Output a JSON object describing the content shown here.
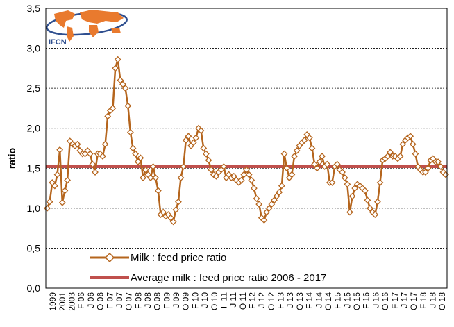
{
  "chart_data": {
    "type": "line",
    "ylabel": "ratio",
    "ylim": [
      0,
      3.5
    ],
    "yticks": [
      "0,0",
      "0,5",
      "1,0",
      "1,5",
      "2,0",
      "2,5",
      "3,0",
      "3,5"
    ],
    "grid": "horizontal dashed",
    "legend_position": "bottom-left inside plot",
    "logo_text": "IFCN",
    "x_tick_labels": [
      "1999",
      "2001",
      "2003",
      "F 06",
      "J 06",
      "O 06",
      "F 07",
      "J 07",
      "O 07",
      "F 08",
      "J 08",
      "O 08",
      "F 09",
      "J 09",
      "O 09",
      "F 10",
      "J 10",
      "O 10",
      "F 11",
      "J 11",
      "O 11",
      "F 12",
      "J 12",
      "O 12",
      "F 13",
      "J 13",
      "O 13",
      "F 14",
      "J 14",
      "O 14",
      "F 15",
      "J 15",
      "O 15",
      "F 16",
      "J 16",
      "O 16",
      "F 17",
      "J 17",
      "O 17",
      "F 18",
      "J 18",
      "O 18"
    ],
    "series": [
      {
        "name": "Milk : feed price ratio",
        "color": "#b5651d",
        "marker": "diamond",
        "values": [
          1.0,
          1.08,
          1.32,
          1.28,
          1.42,
          1.73,
          1.07,
          1.22,
          1.35,
          1.84,
          1.8,
          1.78,
          1.8,
          1.72,
          1.68,
          1.68,
          1.72,
          1.68,
          1.55,
          1.45,
          1.68,
          1.68,
          1.65,
          1.8,
          2.15,
          2.22,
          2.25,
          2.75,
          2.86,
          2.6,
          2.55,
          2.5,
          2.28,
          1.95,
          1.75,
          1.68,
          1.58,
          1.63,
          1.38,
          1.48,
          1.42,
          1.38,
          1.52,
          1.38,
          1.22,
          0.92,
          0.95,
          0.9,
          0.92,
          0.88,
          0.83,
          0.98,
          1.08,
          1.38,
          1.52,
          1.85,
          1.9,
          1.78,
          1.82,
          1.88,
          2.0,
          1.97,
          1.75,
          1.68,
          1.6,
          1.48,
          1.42,
          1.4,
          1.45,
          1.48,
          1.52,
          1.38,
          1.42,
          1.38,
          1.4,
          1.35,
          1.32,
          1.35,
          1.42,
          1.48,
          1.42,
          1.35,
          1.25,
          1.12,
          1.05,
          0.88,
          0.85,
          0.95,
          1.0,
          1.05,
          1.1,
          1.15,
          1.2,
          1.28,
          1.68,
          1.5,
          1.38,
          1.42,
          1.65,
          1.72,
          1.78,
          1.82,
          1.85,
          1.92,
          1.88,
          1.75,
          1.55,
          1.5,
          1.58,
          1.65,
          1.52,
          1.55,
          1.32,
          1.32,
          1.52,
          1.55,
          1.48,
          1.45,
          1.38,
          1.3,
          0.95,
          1.15,
          1.25,
          1.3,
          1.28,
          1.25,
          1.22,
          1.1,
          1.0,
          0.95,
          0.92,
          1.08,
          1.32,
          1.6,
          1.62,
          1.65,
          1.7,
          1.65,
          1.65,
          1.62,
          1.65,
          1.8,
          1.85,
          1.88,
          1.9,
          1.8,
          1.68,
          1.52,
          1.48,
          1.45,
          1.45,
          1.5,
          1.6,
          1.62,
          1.58,
          1.58,
          1.52,
          1.45,
          1.42
        ]
      },
      {
        "name": "Average milk : feed price ratio 2006 - 2017",
        "color": "#c0504d",
        "values": [
          1.52,
          1.52
        ]
      }
    ]
  }
}
